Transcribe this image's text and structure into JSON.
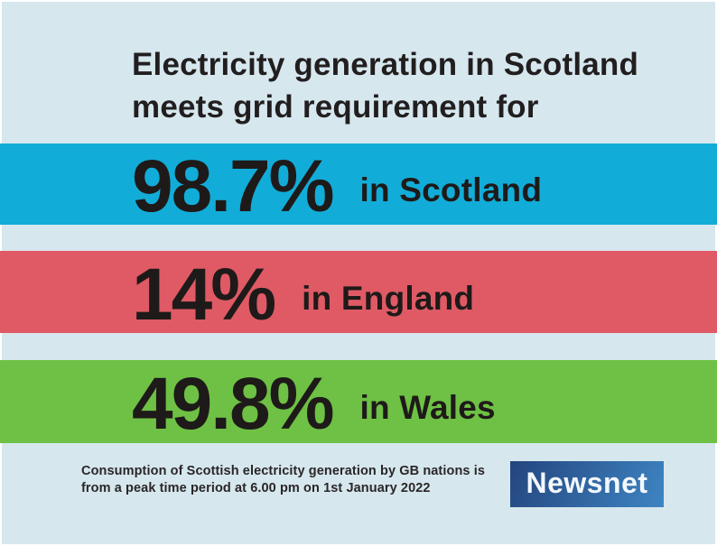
{
  "page": {
    "background": "#d6e7ee",
    "title_line1": "Electricity generation in Scotland",
    "title_line2": "meets grid requirement for",
    "text_color": "#1e1a19"
  },
  "bars": [
    {
      "value": "98.7%",
      "label": "in Scotland",
      "color": "#12acd8"
    },
    {
      "value": "14%",
      "label": "in England",
      "color": "#df5a65"
    },
    {
      "value": "49.8%",
      "label": "in Wales",
      "color": "#6ec144"
    }
  ],
  "footer": {
    "line1": "Consumption of Scottish electricity generation by GB nations is",
    "line2": "from a peak time period at 6.00 pm on 1st January 2022"
  },
  "logo": {
    "text": "Newsnet",
    "bg_from": "#24457e",
    "bg_to": "#3e85c3",
    "text_color": "#f2f8fd"
  },
  "chart_data": {
    "type": "bar",
    "categories": [
      "Scotland",
      "England",
      "Wales"
    ],
    "values": [
      98.7,
      14,
      49.8
    ],
    "unit": "%",
    "title": "Electricity generation in Scotland meets grid requirement for",
    "annotations": [
      "98.7% in Scotland",
      "14% in England",
      "49.8% in Wales"
    ],
    "note": "Consumption of Scottish electricity generation by GB nations is from a peak time period at 6.00 pm on 1st January 2022",
    "colors": [
      "#12acd8",
      "#df5a65",
      "#6ec144"
    ],
    "legend_position": "none",
    "grid": false,
    "source_brand": "Newsnet"
  }
}
